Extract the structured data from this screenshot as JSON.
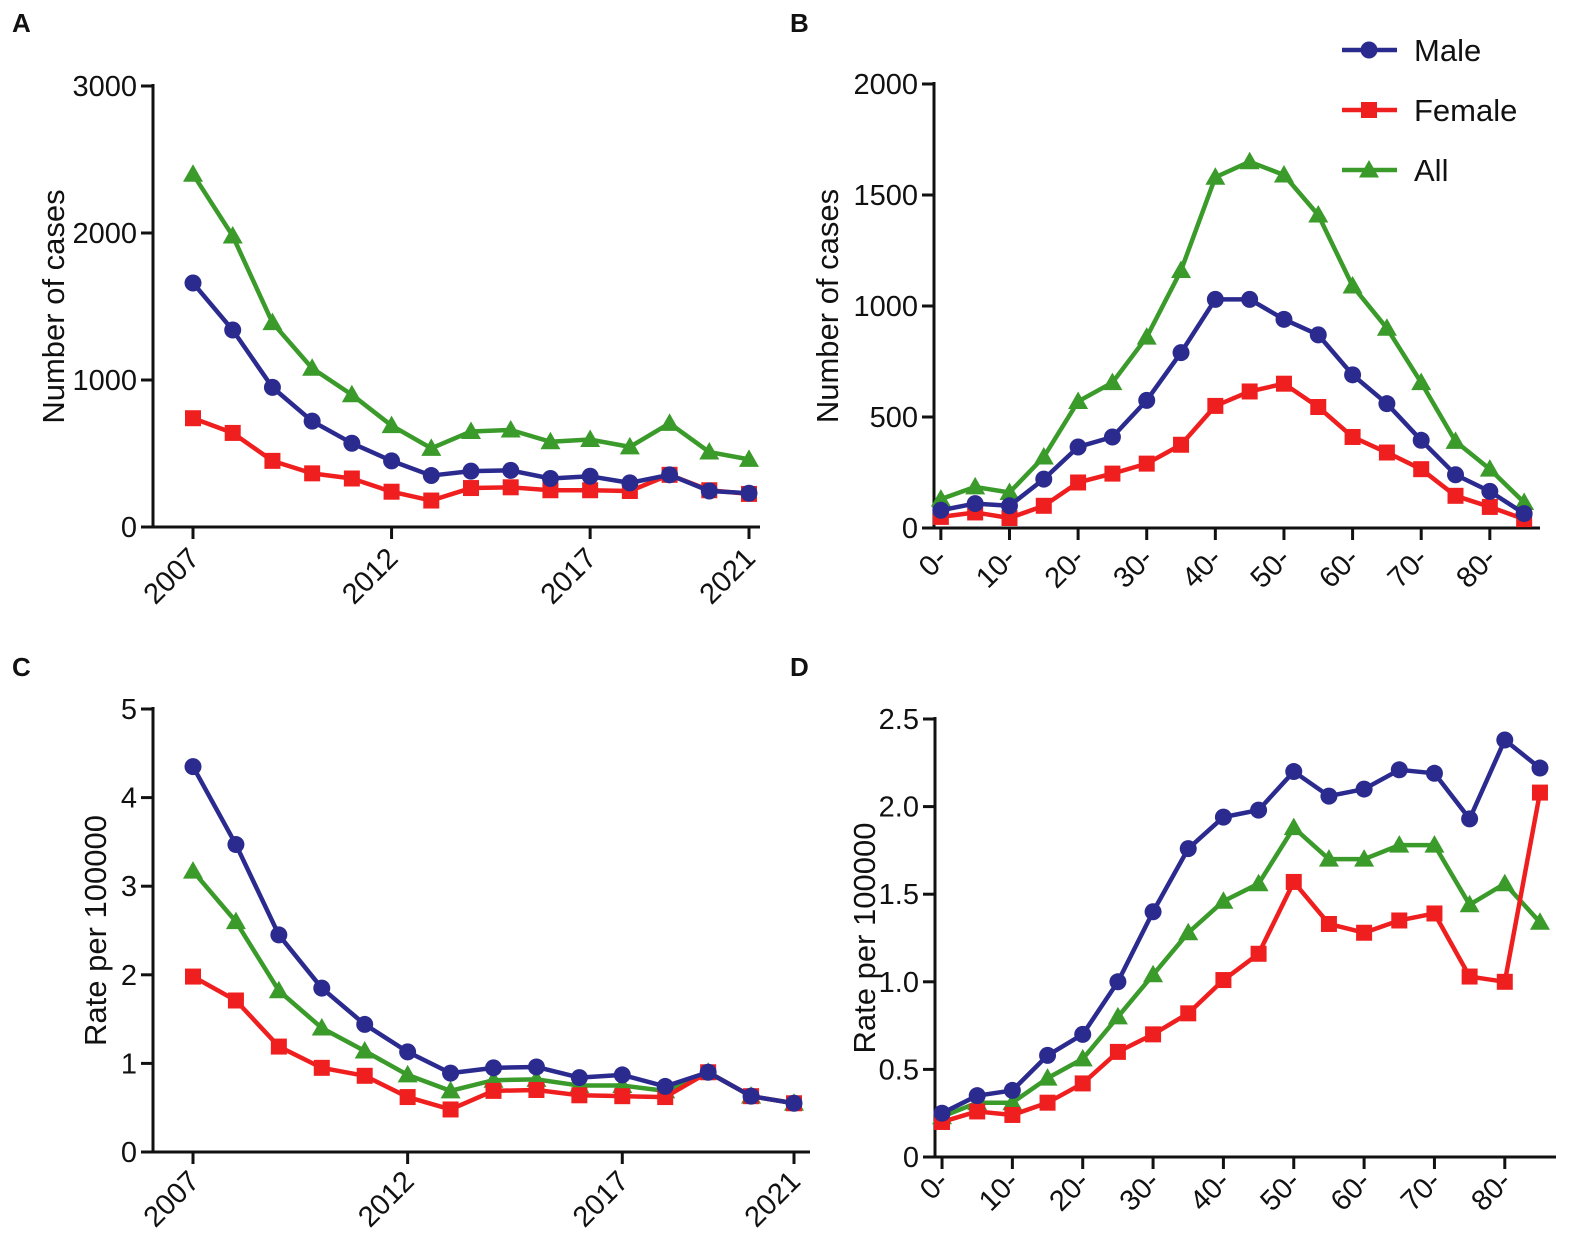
{
  "colors": {
    "male": "#2b2b8f",
    "female": "#f01f1f",
    "all": "#3a9a2a",
    "axis": "#111111"
  },
  "legend": [
    {
      "key": "male",
      "label": "Male",
      "marker": "circle"
    },
    {
      "key": "female",
      "label": "Female",
      "marker": "square"
    },
    {
      "key": "all",
      "label": "All",
      "marker": "triangle"
    }
  ],
  "chart_data": [
    {
      "panel": "A",
      "type": "line",
      "title": "",
      "xlabel": "",
      "ylabel": "Number of cases",
      "x": [
        2007,
        2008,
        2009,
        2010,
        2011,
        2012,
        2013,
        2014,
        2015,
        2016,
        2017,
        2018,
        2019,
        2020,
        2021
      ],
      "xticks": [
        2007,
        2012,
        2017,
        2021
      ],
      "xlim": [
        2007,
        2021
      ],
      "yticks": [
        0,
        1000,
        2000,
        3000
      ],
      "ylim": [
        0,
        3000
      ],
      "series": [
        {
          "name": "Male",
          "key": "male",
          "marker": "circle",
          "values": [
            1660,
            1340,
            950,
            720,
            570,
            450,
            350,
            380,
            385,
            330,
            345,
            300,
            355,
            245,
            230
          ]
        },
        {
          "name": "Female",
          "key": "female",
          "marker": "square",
          "values": [
            740,
            640,
            450,
            365,
            330,
            240,
            180,
            265,
            270,
            250,
            250,
            245,
            355,
            250,
            225
          ]
        },
        {
          "name": "All",
          "key": "all",
          "marker": "triangle",
          "values": [
            2400,
            1980,
            1390,
            1080,
            900,
            690,
            535,
            650,
            660,
            580,
            595,
            545,
            705,
            510,
            460
          ]
        }
      ]
    },
    {
      "panel": "B",
      "type": "line",
      "title": "",
      "xlabel": "",
      "ylabel": "Number of cases",
      "x": [
        0,
        5,
        10,
        15,
        20,
        25,
        30,
        35,
        40,
        45,
        50,
        55,
        60,
        65,
        70,
        75,
        80,
        85
      ],
      "xticks": [
        0,
        10,
        20,
        30,
        40,
        50,
        60,
        70,
        80
      ],
      "xticklabels": [
        "0-",
        "10-",
        "20-",
        "30-",
        "40-",
        "50-",
        "60-",
        "70-",
        "80-"
      ],
      "xlim": [
        -1,
        86
      ],
      "yticks": [
        0,
        500,
        1000,
        1500,
        2000
      ],
      "ylim": [
        0,
        2000
      ],
      "legend_position": "top-right",
      "series": [
        {
          "name": "Male",
          "key": "male",
          "marker": "circle",
          "values": [
            80,
            110,
            100,
            220,
            365,
            410,
            575,
            790,
            1030,
            1030,
            940,
            870,
            690,
            560,
            395,
            240,
            165,
            65
          ]
        },
        {
          "name": "Female",
          "key": "female",
          "marker": "square",
          "values": [
            50,
            70,
            45,
            100,
            205,
            245,
            290,
            375,
            550,
            615,
            650,
            545,
            410,
            340,
            265,
            145,
            95,
            40
          ]
        },
        {
          "name": "All",
          "key": "all",
          "marker": "triangle",
          "values": [
            130,
            185,
            160,
            320,
            570,
            655,
            860,
            1160,
            1580,
            1650,
            1590,
            1410,
            1090,
            900,
            655,
            390,
            265,
            115
          ]
        }
      ]
    },
    {
      "panel": "C",
      "type": "line",
      "title": "",
      "xlabel": "",
      "ylabel": "Rate per 100000",
      "x": [
        2007,
        2008,
        2009,
        2010,
        2011,
        2012,
        2013,
        2014,
        2015,
        2016,
        2017,
        2018,
        2019,
        2020,
        2021
      ],
      "xticks": [
        2007,
        2012,
        2017,
        2021
      ],
      "xlim": [
        2007,
        2021
      ],
      "yticks": [
        0,
        1,
        2,
        3,
        4,
        5
      ],
      "ylim": [
        0,
        5
      ],
      "series": [
        {
          "name": "Male",
          "key": "male",
          "marker": "circle",
          "values": [
            4.35,
            3.47,
            2.45,
            1.85,
            1.44,
            1.13,
            0.89,
            0.95,
            0.96,
            0.84,
            0.87,
            0.74,
            0.9,
            0.63,
            0.55
          ]
        },
        {
          "name": "Female",
          "key": "female",
          "marker": "square",
          "values": [
            1.98,
            1.71,
            1.19,
            0.95,
            0.86,
            0.62,
            0.48,
            0.69,
            0.7,
            0.64,
            0.63,
            0.62,
            0.9,
            0.63,
            0.55
          ]
        },
        {
          "name": "All",
          "key": "all",
          "marker": "triangle",
          "values": [
            3.17,
            2.6,
            1.82,
            1.4,
            1.14,
            0.87,
            0.69,
            0.81,
            0.82,
            0.75,
            0.75,
            0.69,
            0.9,
            0.63,
            0.55
          ]
        }
      ]
    },
    {
      "panel": "D",
      "type": "line",
      "title": "",
      "xlabel": "",
      "ylabel": "Rate per 100000",
      "x": [
        0,
        5,
        10,
        15,
        20,
        25,
        30,
        35,
        40,
        45,
        50,
        55,
        60,
        65,
        70,
        75,
        80,
        85
      ],
      "xticks": [
        0,
        10,
        20,
        30,
        40,
        50,
        60,
        70,
        80
      ],
      "xticklabels": [
        "0-",
        "10-",
        "20-",
        "30-",
        "40-",
        "50-",
        "60-",
        "70-",
        "80-"
      ],
      "xlim": [
        -1,
        86
      ],
      "yticks": [
        0,
        0.5,
        1.0,
        1.5,
        2.0,
        2.5
      ],
      "yticklabels": [
        "0",
        "0.5",
        "1.0",
        "1.5",
        "2.0",
        "2.5"
      ],
      "ylim": [
        0,
        2.5
      ],
      "series": [
        {
          "name": "Male",
          "key": "male",
          "marker": "circle",
          "values": [
            0.25,
            0.35,
            0.38,
            0.58,
            0.7,
            1.0,
            1.4,
            1.76,
            1.94,
            1.98,
            2.2,
            2.06,
            2.1,
            2.21,
            2.19,
            1.93,
            2.38,
            2.22
          ]
        },
        {
          "name": "Female",
          "key": "female",
          "marker": "square",
          "values": [
            0.2,
            0.26,
            0.24,
            0.31,
            0.42,
            0.6,
            0.7,
            0.82,
            1.01,
            1.16,
            1.57,
            1.33,
            1.28,
            1.35,
            1.39,
            1.03,
            1.0,
            2.08
          ]
        },
        {
          "name": "All",
          "key": "all",
          "marker": "triangle",
          "values": [
            0.23,
            0.31,
            0.31,
            0.45,
            0.56,
            0.8,
            1.04,
            1.28,
            1.46,
            1.56,
            1.88,
            1.7,
            1.7,
            1.78,
            1.78,
            1.44,
            1.56,
            1.34
          ]
        }
      ]
    }
  ]
}
